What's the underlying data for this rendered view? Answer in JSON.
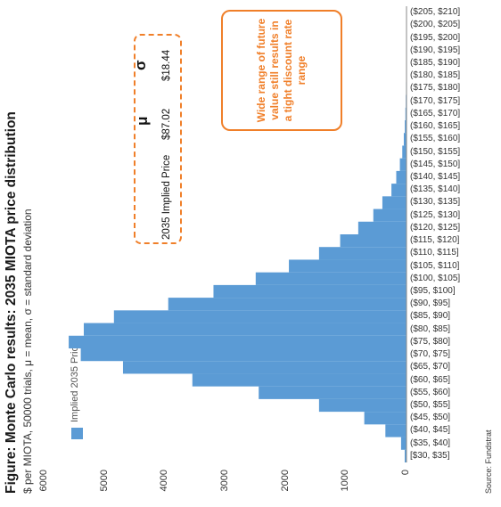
{
  "title": "Figure: Monte Carlo results: 2035 MIOTA price distribution",
  "subtitle": "$ per MIOTA, 50000 trials, μ = mean, σ = standard deviation",
  "source": "Source: Fundstrat",
  "legend": {
    "label": "Implied 2035 Price",
    "color": "#5b9bd5"
  },
  "stats": {
    "header_mu": "μ",
    "header_sigma": "σ",
    "row_label": "2035 Implied Price",
    "mu_value": "$87.02",
    "sigma_value": "$18.44",
    "border_color": "#f07f29"
  },
  "callout": {
    "text": "Wide range of future value still results in a tight discount rate range",
    "color": "#f07f29"
  },
  "chart_data": {
    "type": "bar",
    "categories": [
      "[$30, $35]",
      "($35, $40]",
      "($40, $45]",
      "($45, $50]",
      "($50, $55]",
      "($55, $60]",
      "($60, $65]",
      "($65, $70]",
      "($70, $75]",
      "($75, $80]",
      "($80, $85]",
      "($85, $90]",
      "($90, $95]",
      "($95, $100]",
      "($100, $105]",
      "($105, $110]",
      "($110, $115]",
      "($115, $120]",
      "($120, $125]",
      "($125, $130]",
      "($130, $135]",
      "($135, $140]",
      "($140, $145]",
      "($145, $150]",
      "($150, $155]",
      "($155, $160]",
      "($160, $165]",
      "($165, $170]",
      "($170, $175]",
      "($175, $180]",
      "($180, $185]",
      "($185, $190]",
      "($190, $195]",
      "($195, $200]",
      "($200, $205]",
      "($205, $210]"
    ],
    "series": [
      {
        "name": "Implied 2035 Price",
        "values": [
          30,
          90,
          350,
          700,
          1450,
          2450,
          3550,
          4700,
          5400,
          5600,
          5350,
          4850,
          3950,
          3200,
          2500,
          1950,
          1450,
          1100,
          800,
          550,
          400,
          250,
          170,
          110,
          70,
          45,
          28,
          18,
          12,
          8,
          5,
          4,
          3,
          2,
          1,
          1
        ]
      }
    ],
    "ylim": [
      0,
      6000
    ],
    "yticks": [
      0,
      1000,
      2000,
      3000,
      4000,
      5000,
      6000
    ],
    "grid": false,
    "legend_position": "top-left"
  }
}
